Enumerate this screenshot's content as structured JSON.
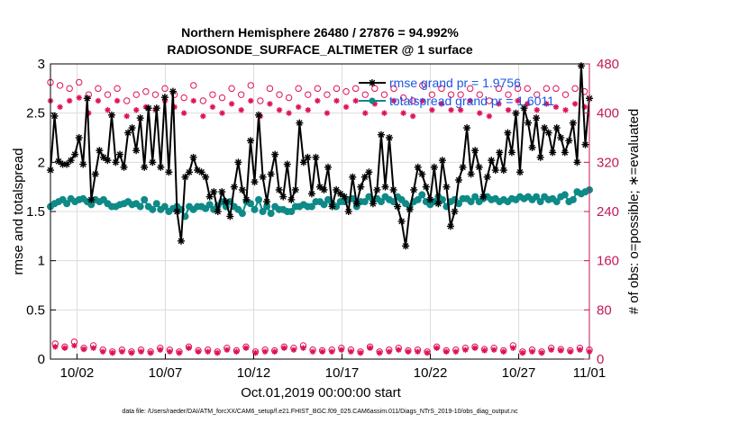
{
  "chart_data": {
    "type": "line",
    "title": "Northern Hemisphere 26480 / 27876 = 94.992%",
    "subtitle": "RADIOSONDE_SURFACE_ALTIMETER @ 1 surface",
    "xlabel": "Oct.01,2019 00:00:00 start",
    "ylabel_left": "rmse and totalspread",
    "ylabel_right": "# of obs: o=possible; ∗=evaluated",
    "footer": "data file: /Users/raeder/DAI/ATM_forcXX/CAM6_setup/f.e21.FHIST_BGC.f09_025.CAM6assim.011/Diags_NTrS_2019-10/obs_diag_output.nc",
    "x_range": [
      0.5,
      31
    ],
    "x_ticks": [
      {
        "value": 2,
        "label": "10/02"
      },
      {
        "value": 7,
        "label": "10/07"
      },
      {
        "value": 12,
        "label": "10/12"
      },
      {
        "value": 17,
        "label": "10/17"
      },
      {
        "value": 22,
        "label": "10/22"
      },
      {
        "value": 27,
        "label": "10/27"
      },
      {
        "value": 31,
        "label": "11/01"
      }
    ],
    "y_left_range": [
      0,
      3
    ],
    "y_left_ticks": [
      {
        "value": 0,
        "label": "0"
      },
      {
        "value": 0.5,
        "label": "0.5"
      },
      {
        "value": 1,
        "label": "1"
      },
      {
        "value": 1.5,
        "label": "1.5"
      },
      {
        "value": 2,
        "label": "2"
      },
      {
        "value": 2.5,
        "label": "2.5"
      },
      {
        "value": 3,
        "label": "3"
      }
    ],
    "y_right_range": [
      0,
      480
    ],
    "y_right_ticks": [
      {
        "value": 0,
        "label": "0"
      },
      {
        "value": 80,
        "label": "80"
      },
      {
        "value": 160,
        "label": "160"
      },
      {
        "value": 240,
        "label": "240"
      },
      {
        "value": 320,
        "label": "320"
      },
      {
        "value": 400,
        "label": "400"
      },
      {
        "value": 480,
        "label": "480"
      }
    ],
    "grid": true,
    "legend_position": "top-right",
    "series": [
      {
        "name": "rmse grand pr = 1.9756",
        "axis": "left",
        "color": "#000000",
        "marker": "asterisk",
        "values": [
          1.92,
          2.47,
          2.01,
          1.98,
          1.98,
          2.02,
          2.08,
          2.25,
          1.98,
          2.65,
          1.62,
          1.88,
          2.12,
          2.05,
          2.02,
          2.48,
          2.0,
          2.08,
          1.95,
          2.3,
          2.35,
          2.12,
          2.45,
          1.95,
          2.55,
          2.0,
          2.55,
          1.95,
          2.66,
          1.9,
          2.72,
          1.5,
          1.2,
          1.85,
          1.9,
          2.05,
          1.92,
          1.9,
          1.85,
          1.65,
          1.7,
          1.5,
          1.7,
          1.6,
          1.45,
          1.75,
          2.0,
          1.72,
          1.62,
          2.22,
          1.8,
          2.48,
          1.85,
          1.6,
          1.88,
          2.08,
          1.72,
          1.65,
          1.98,
          1.62,
          1.72,
          2.4,
          2.0,
          2.05,
          1.68,
          2.05,
          1.75,
          1.72,
          1.95,
          1.55,
          1.72,
          1.68,
          1.65,
          1.5,
          1.85,
          1.58,
          1.75,
          1.85,
          1.9,
          1.58,
          1.72,
          2.28,
          1.75,
          2.25,
          1.72,
          1.55,
          1.4,
          1.15,
          1.52,
          1.72,
          1.95,
          1.88,
          1.75,
          1.62,
          1.95,
          1.58,
          2.02,
          1.75,
          1.35,
          1.5,
          1.82,
          1.95,
          2.35,
          1.88,
          2.12,
          1.95,
          1.65,
          1.85,
          2.02,
          1.92,
          2.1,
          1.92,
          2.3,
          2.1,
          2.5,
          1.9,
          2.55,
          2.4,
          2.15,
          2.45,
          2.05,
          2.35,
          2.3,
          2.1,
          2.35,
          2.25,
          2.1,
          2.22,
          2.4,
          2.0,
          2.98,
          2.18,
          2.65
        ]
      },
      {
        "name": "totalspread grand pr = 1.6011",
        "axis": "left",
        "color": "#0e8a87",
        "marker": "circle",
        "values": [
          1.55,
          1.58,
          1.6,
          1.62,
          1.58,
          1.63,
          1.6,
          1.62,
          1.63,
          1.6,
          1.57,
          1.62,
          1.6,
          1.62,
          1.58,
          1.55,
          1.55,
          1.57,
          1.58,
          1.6,
          1.57,
          1.58,
          1.55,
          1.62,
          1.55,
          1.52,
          1.58,
          1.52,
          1.55,
          1.5,
          1.53,
          1.55,
          1.52,
          1.45,
          1.55,
          1.52,
          1.55,
          1.55,
          1.53,
          1.57,
          1.52,
          1.56,
          1.6,
          1.55,
          1.6,
          1.55,
          1.52,
          1.48,
          1.6,
          1.58,
          1.52,
          1.62,
          1.5,
          1.55,
          1.48,
          1.55,
          1.52,
          1.52,
          1.5,
          1.5,
          1.55,
          1.55,
          1.57,
          1.55,
          1.55,
          1.6,
          1.6,
          1.57,
          1.62,
          1.58,
          1.55,
          1.6,
          1.6,
          1.62,
          1.63,
          1.55,
          1.6,
          1.6,
          1.65,
          1.62,
          1.63,
          1.6,
          1.65,
          1.62,
          1.6,
          1.65,
          1.62,
          1.58,
          1.55,
          1.6,
          1.62,
          1.67,
          1.6,
          1.57,
          1.6,
          1.65,
          1.62,
          1.55,
          1.6,
          1.62,
          1.58,
          1.63,
          1.63,
          1.6,
          1.65,
          1.6,
          1.63,
          1.65,
          1.62,
          1.63,
          1.6,
          1.62,
          1.6,
          1.63,
          1.62,
          1.65,
          1.63,
          1.65,
          1.62,
          1.65,
          1.6,
          1.65,
          1.62,
          1.63,
          1.6,
          1.65,
          1.67,
          1.6,
          1.62,
          1.7,
          1.68,
          1.7,
          1.72
        ]
      },
      {
        "name": "possible",
        "axis": "right",
        "color": "#e0105a",
        "marker": "open-circle",
        "values": [
          450,
          25,
          445,
          20,
          440,
          28,
          450,
          18,
          430,
          22,
          440,
          15,
          430,
          12,
          440,
          15,
          420,
          12,
          430,
          15,
          435,
          12,
          430,
          18,
          440,
          15,
          430,
          12,
          425,
          20,
          445,
          14,
          420,
          15,
          430,
          12,
          425,
          18,
          440,
          14,
          430,
          20,
          445,
          12,
          420,
          15,
          440,
          14,
          430,
          20,
          425,
          18,
          440,
          22,
          430,
          15,
          440,
          14,
          430,
          15,
          440,
          18,
          435,
          15,
          440,
          12,
          430,
          20,
          440,
          12,
          430,
          15,
          440,
          18,
          425,
          14,
          420,
          15,
          445,
          12,
          430,
          20,
          440,
          14,
          430,
          15,
          430,
          18,
          440,
          20,
          430,
          16,
          420,
          18,
          440,
          14,
          430,
          22,
          440,
          12,
          440,
          15,
          430,
          12,
          440,
          18,
          440,
          16,
          430,
          14,
          440,
          18,
          435,
          15
        ]
      },
      {
        "name": "evaluated",
        "axis": "right",
        "color": "#e0105a",
        "marker": "asterisk",
        "values": [
          420,
          20,
          410,
          18,
          420,
          22,
          425,
          16,
          400,
          18,
          420,
          12,
          405,
          10,
          420,
          12,
          395,
          10,
          405,
          12,
          410,
          10,
          405,
          15,
          420,
          12,
          410,
          10,
          400,
          18,
          420,
          12,
          395,
          12,
          410,
          10,
          400,
          15,
          415,
          12,
          405,
          18,
          420,
          10,
          395,
          12,
          415,
          12,
          405,
          18,
          400,
          15,
          410,
          18,
          405,
          12,
          420,
          12,
          400,
          12,
          420,
          15,
          410,
          12,
          420,
          10,
          400,
          18,
          415,
          10,
          400,
          12,
          420,
          15,
          400,
          12,
          395,
          12,
          420,
          10,
          405,
          18,
          415,
          12,
          405,
          12,
          405,
          15,
          420,
          18,
          400,
          14,
          395,
          15,
          415,
          12,
          405,
          18,
          420,
          10,
          415,
          12,
          405,
          10,
          415,
          15,
          410,
          14,
          405,
          12,
          415,
          15,
          410,
          12
        ]
      }
    ]
  }
}
